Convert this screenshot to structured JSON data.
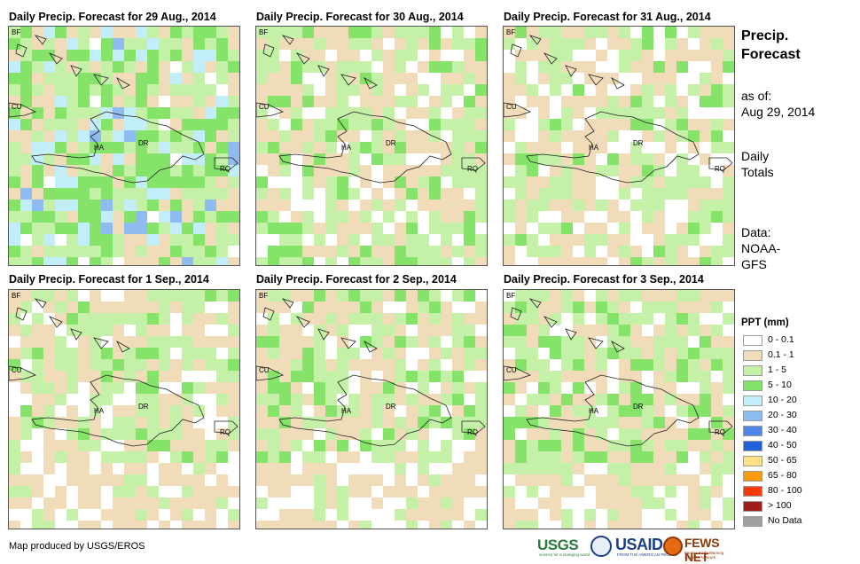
{
  "panels": [
    {
      "title": "Daily Precip. Forecast for 29 Aug., 2014",
      "seed": 29,
      "bias": 2.2
    },
    {
      "title": "Daily Precip. Forecast for 30 Aug., 2014",
      "seed": 30,
      "bias": 0.9
    },
    {
      "title": "Daily Precip. Forecast for 31 Aug., 2014",
      "seed": 31,
      "bias": 0.6
    },
    {
      "title": "Daily Precip. Forecast for 1 Sep., 2014",
      "seed": 1,
      "bias": 0.7
    },
    {
      "title": "Daily Precip. Forecast for 2 Sep., 2014",
      "seed": 2,
      "bias": 0.8
    },
    {
      "title": "Daily Precip. Forecast for 3 Sep., 2014",
      "seed": 3,
      "bias": 1.1
    }
  ],
  "places": [
    "BF",
    "CU",
    "HA",
    "DR",
    "RQ"
  ],
  "sidebar": {
    "title_line1": "Precip.",
    "title_line2": "Forecast",
    "asof_line1": "as of:",
    "asof_line2": "Aug 29, 2014",
    "totals_line1": "Daily",
    "totals_line2": "Totals",
    "data_line1": "Data:",
    "data_line2": "NOAA-",
    "data_line3": "GFS"
  },
  "legend": {
    "title": "PPT (mm)",
    "items": [
      {
        "label": "0 - 0.1",
        "color": "#ffffff"
      },
      {
        "label": "0.1 - 1",
        "color": "#f0dcb8"
      },
      {
        "label": "1 - 5",
        "color": "#c5f0a8"
      },
      {
        "label": "5 - 10",
        "color": "#86e36a"
      },
      {
        "label": "10 - 20",
        "color": "#c2eefa"
      },
      {
        "label": "20 - 30",
        "color": "#8ebcf0"
      },
      {
        "label": "30 - 40",
        "color": "#4f86e8"
      },
      {
        "label": "40 - 50",
        "color": "#2361d8"
      },
      {
        "label": "50 - 65",
        "color": "#fde082"
      },
      {
        "label": "65 - 80",
        "color": "#fb9a0a"
      },
      {
        "label": "80 - 100",
        "color": "#f93a0a"
      },
      {
        "label": "> 100",
        "color": "#a11d1d"
      },
      {
        "label": "No Data",
        "color": "#a0a0a0"
      }
    ]
  },
  "credit": "Map produced by USGS/EROS",
  "logos": {
    "usgs": "USGS",
    "usgs_tagline": "science for a changing world",
    "usaid": "USAID",
    "usaid_tagline": "FROM THE AMERICAN PEOPLE",
    "fews": "FEWS NET",
    "fews_tagline": "Famine Early Warning Systems Network"
  }
}
